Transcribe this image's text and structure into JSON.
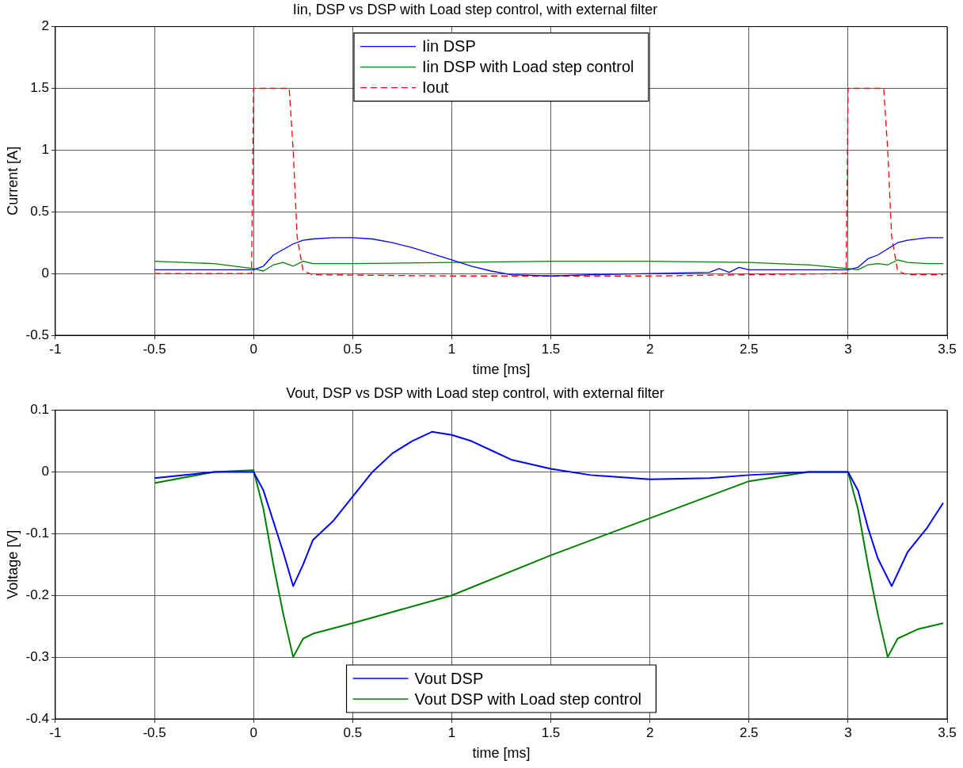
{
  "chart_data": [
    {
      "type": "line",
      "title": "Iin, DSP vs DSP with Load step control, with external filter",
      "xlabel": "time [ms]",
      "ylabel": "Current [A]",
      "xlim": [
        -1,
        3.5
      ],
      "xticks": [
        -1,
        -0.5,
        0,
        0.5,
        1,
        1.5,
        2,
        2.5,
        3,
        3.5
      ],
      "ylim": [
        -0.5,
        2
      ],
      "yticks": [
        -0.5,
        0,
        0.5,
        1,
        1.5,
        2
      ],
      "grid": true,
      "legend": "top",
      "marker": "none",
      "series": [
        {
          "name": "Iin DSP",
          "color": "#0000ff",
          "line_style": "solid",
          "x": [
            -0.5,
            -0.3,
            -0.1,
            0,
            0.05,
            0.1,
            0.2,
            0.25,
            0.3,
            0.4,
            0.5,
            0.6,
            0.7,
            0.8,
            0.9,
            1.0,
            1.1,
            1.2,
            1.3,
            1.5,
            1.7,
            2.0,
            2.3,
            2.35,
            2.4,
            2.45,
            2.5,
            2.7,
            3.0,
            3.05,
            3.1,
            3.15,
            3.25,
            3.3,
            3.4,
            3.48
          ],
          "values": [
            0.03,
            0.03,
            0.03,
            0.03,
            0.06,
            0.15,
            0.24,
            0.27,
            0.28,
            0.29,
            0.29,
            0.28,
            0.25,
            0.21,
            0.16,
            0.11,
            0.06,
            0.02,
            -0.01,
            -0.02,
            -0.01,
            0,
            0.01,
            0.04,
            0.01,
            0.05,
            0.03,
            0.03,
            0.03,
            0.05,
            0.12,
            0.15,
            0.25,
            0.27,
            0.29,
            0.29
          ]
        },
        {
          "name": "Iin DSP with Load step control",
          "color": "#008000",
          "line_style": "solid",
          "x": [
            -0.5,
            -0.2,
            0,
            0.05,
            0.1,
            0.15,
            0.2,
            0.25,
            0.3,
            0.5,
            1,
            1.5,
            2,
            2.5,
            2.8,
            3.0,
            3.05,
            3.1,
            3.15,
            3.2,
            3.25,
            3.3,
            3.4,
            3.48
          ],
          "values": [
            0.1,
            0.08,
            0.04,
            0.02,
            0.07,
            0.09,
            0.06,
            0.1,
            0.08,
            0.08,
            0.09,
            0.1,
            0.1,
            0.09,
            0.07,
            0.04,
            0.03,
            0.07,
            0.08,
            0.07,
            0.11,
            0.09,
            0.08,
            0.08
          ]
        },
        {
          "name": "Iout",
          "color": "#ff0000",
          "line_style": "dashed",
          "x": [
            -0.5,
            -0.01,
            0,
            0.18,
            0.2,
            0.22,
            0.25,
            0.3,
            1,
            2,
            2.99,
            3.0,
            3.18,
            3.2,
            3.22,
            3.25,
            3.3,
            3.48
          ],
          "values": [
            0,
            0,
            1.5,
            1.5,
            1.0,
            0.3,
            0.02,
            -0.01,
            -0.02,
            -0.02,
            0,
            1.5,
            1.5,
            1.0,
            0.3,
            0.02,
            -0.01,
            -0.01
          ]
        }
      ]
    },
    {
      "type": "line",
      "title": "Vout, DSP vs DSP with Load step control, with external filter",
      "xlabel": "time [ms]",
      "ylabel": "Voltage [V]",
      "xlim": [
        -1,
        3.5
      ],
      "xticks": [
        -1,
        -0.5,
        0,
        0.5,
        1,
        1.5,
        2,
        2.5,
        3,
        3.5
      ],
      "ylim": [
        -0.4,
        0.1
      ],
      "yticks": [
        -0.4,
        -0.3,
        -0.2,
        -0.1,
        0,
        0.1
      ],
      "grid": true,
      "legend": "bottom",
      "marker": "none",
      "series": [
        {
          "name": "Vout DSP",
          "color": "#0000ff",
          "line_style": "solid",
          "x": [
            -0.5,
            -0.2,
            0,
            0.05,
            0.1,
            0.15,
            0.2,
            0.25,
            0.3,
            0.4,
            0.5,
            0.6,
            0.7,
            0.8,
            0.9,
            1.0,
            1.1,
            1.2,
            1.3,
            1.5,
            1.7,
            2.0,
            2.3,
            2.5,
            2.8,
            3.0,
            3.05,
            3.1,
            3.15,
            3.22,
            3.3,
            3.4,
            3.48
          ],
          "values": [
            -0.01,
            0,
            0,
            -0.03,
            -0.08,
            -0.13,
            -0.185,
            -0.15,
            -0.11,
            -0.08,
            -0.04,
            0,
            0.03,
            0.05,
            0.065,
            0.06,
            0.05,
            0.035,
            0.02,
            0.005,
            -0.005,
            -0.012,
            -0.01,
            -0.005,
            0,
            0,
            -0.03,
            -0.09,
            -0.14,
            -0.185,
            -0.13,
            -0.09,
            -0.05
          ]
        },
        {
          "name": "Vout DSP with Load step control",
          "color": "#008000",
          "line_style": "solid",
          "x": [
            -0.5,
            -0.2,
            0,
            0.05,
            0.1,
            0.15,
            0.2,
            0.25,
            0.3,
            0.5,
            1.0,
            1.5,
            2.0,
            2.5,
            2.8,
            3.0,
            3.05,
            3.1,
            3.15,
            3.2,
            3.25,
            3.35,
            3.48
          ],
          "values": [
            -0.018,
            0,
            0.003,
            -0.06,
            -0.15,
            -0.23,
            -0.3,
            -0.27,
            -0.262,
            -0.245,
            -0.2,
            -0.135,
            -0.075,
            -0.015,
            0,
            0,
            -0.06,
            -0.15,
            -0.23,
            -0.3,
            -0.27,
            -0.255,
            -0.245
          ]
        }
      ]
    }
  ]
}
